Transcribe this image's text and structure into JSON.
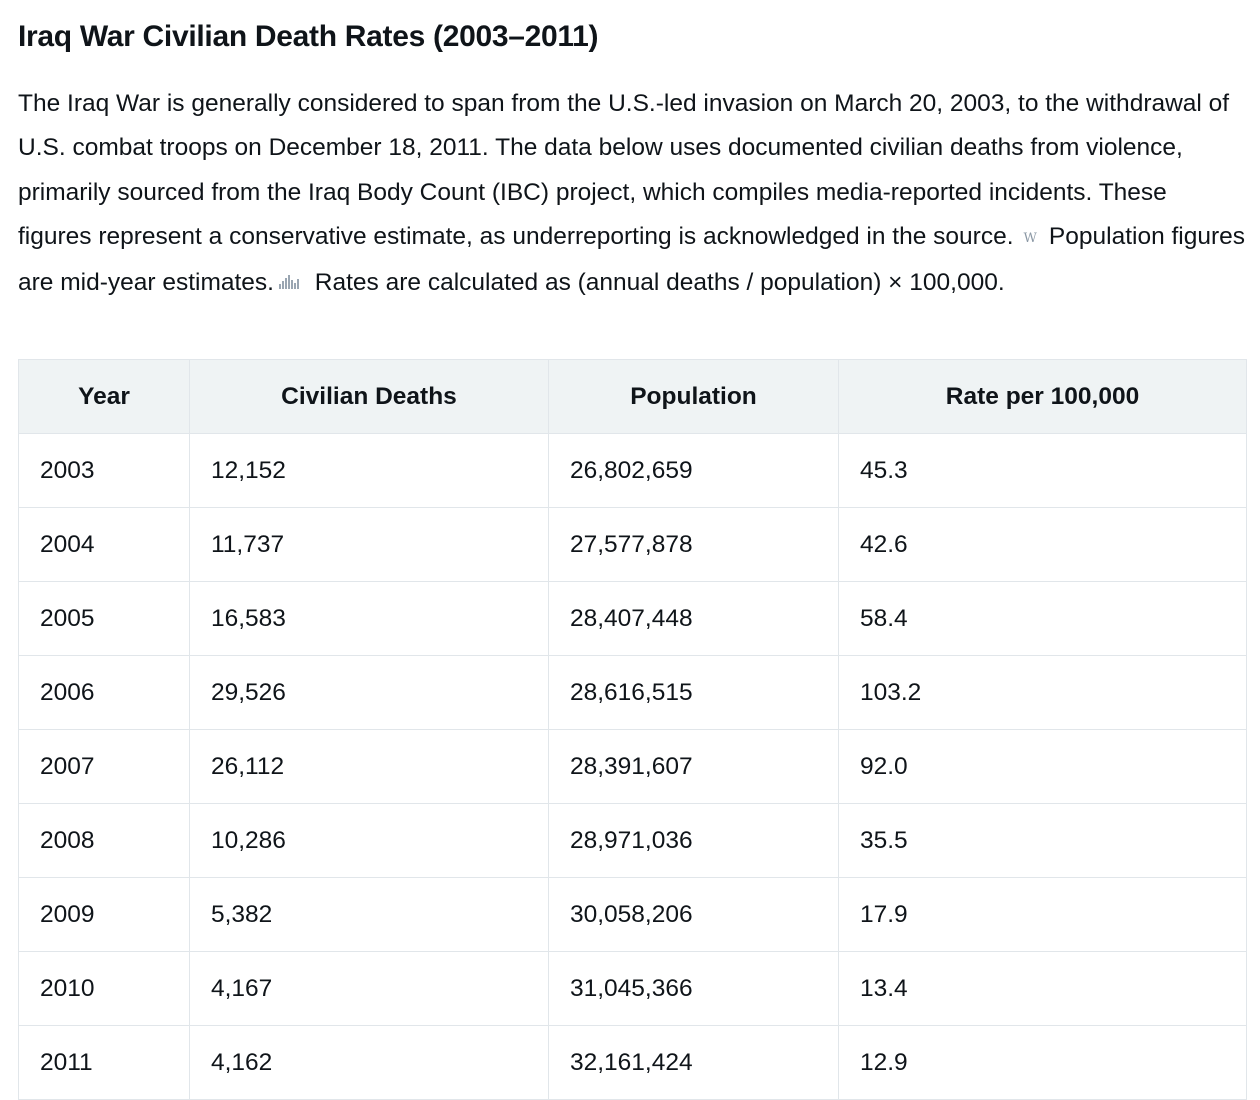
{
  "title": "Iraq War Civilian Death Rates (2003–2011)",
  "intro": {
    "part1": "The Iraq War is generally considered to span from the U.S.-led invasion on March 20, 2003, to the withdrawal of U.S. combat troops on December 18, 2011. The data below uses documented civilian deaths from violence, primarily sourced from the Iraq Body Count (IBC) project, which compiles media-reported incidents. These figures represent a conservative estimate, as underreporting is acknowledged in the source.",
    "source_icon_glyph": "W",
    "part2": "Population figures are mid-year estimates.",
    "part3": "Rates are calculated as (annual deaths / population) × 100,000."
  },
  "icons": {
    "source": "wikipedia-source-icon",
    "data": "chart-source-icon"
  },
  "table": {
    "headers": [
      "Year",
      "Civilian Deaths",
      "Population",
      "Rate per 100,000"
    ],
    "rows": [
      [
        "2003",
        "12,152",
        "26,802,659",
        "45.3"
      ],
      [
        "2004",
        "11,737",
        "27,577,878",
        "42.6"
      ],
      [
        "2005",
        "16,583",
        "28,407,448",
        "58.4"
      ],
      [
        "2006",
        "29,526",
        "28,616,515",
        "103.2"
      ],
      [
        "2007",
        "26,112",
        "28,391,607",
        "92.0"
      ],
      [
        "2008",
        "10,286",
        "28,971,036",
        "35.5"
      ],
      [
        "2009",
        "5,382",
        "30,058,206",
        "17.9"
      ],
      [
        "2010",
        "4,167",
        "31,045,366",
        "13.4"
      ],
      [
        "2011",
        "4,162",
        "32,161,424",
        "12.9"
      ]
    ]
  }
}
